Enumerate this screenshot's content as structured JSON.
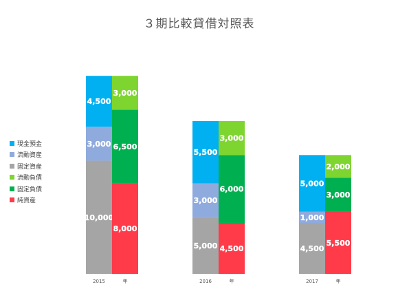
{
  "chart_data": {
    "type": "bar",
    "title": "３期比較貸借対照表",
    "categories": [
      "2015",
      "2016",
      "2017"
    ],
    "year_suffix": "年",
    "stacks": {
      "assets": [
        "固定資産",
        "流動資産",
        "現金預金"
      ],
      "liabilities": [
        "純資産",
        "固定負債",
        "流動負債"
      ]
    },
    "series": [
      {
        "name": "現金預金",
        "color": "#00b0f0",
        "values": [
          4500,
          5500,
          5000
        ]
      },
      {
        "name": "流動資産",
        "color": "#8faadc",
        "values": [
          3000,
          3000,
          1000
        ]
      },
      {
        "name": "固定資産",
        "color": "#a5a5a5",
        "values": [
          10000,
          5000,
          4500
        ]
      },
      {
        "name": "流動負債",
        "color": "#7ed530",
        "values": [
          3000,
          3000,
          2000
        ]
      },
      {
        "name": "固定負債",
        "color": "#00b050",
        "values": [
          6500,
          6000,
          3000
        ]
      },
      {
        "name": "純資産",
        "color": "#ff3b4a",
        "values": [
          8000,
          4500,
          5500
        ]
      }
    ]
  }
}
